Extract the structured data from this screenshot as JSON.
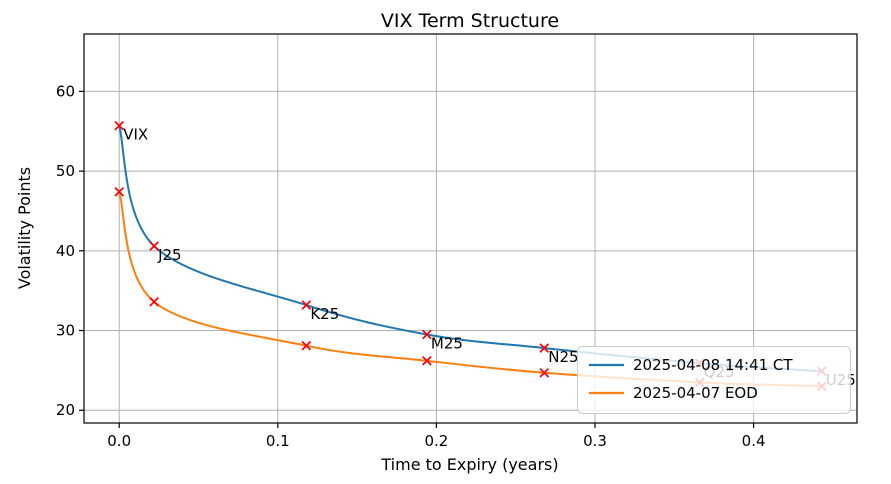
{
  "chart_data": {
    "type": "line",
    "title": "VIX Term Structure",
    "xlabel": "Time to Expiry (years)",
    "ylabel": "Volatility Points",
    "x": [
      0.0,
      0.022,
      0.118,
      0.194,
      0.268,
      0.366,
      0.443
    ],
    "point_labels": [
      "VIX",
      "J25",
      "K25",
      "M25",
      "N25",
      "Q25",
      "U25"
    ],
    "series": [
      {
        "name": "2025-04-08 14:41 CT",
        "color": "#1f77b4",
        "values": [
          55.7,
          40.6,
          33.2,
          29.5,
          27.8,
          25.9,
          24.9
        ]
      },
      {
        "name": "2025-04-07 EOD",
        "color": "#ff7f0e",
        "values": [
          47.4,
          33.6,
          28.1,
          26.2,
          24.7,
          23.5,
          23.0
        ]
      }
    ],
    "marker": {
      "shape": "x",
      "color": "#ff0000"
    },
    "xticks": {
      "values": [
        0.0,
        0.1,
        0.2,
        0.3,
        0.4
      ],
      "labels": [
        "0.0",
        "0.1",
        "0.2",
        "0.3",
        "0.4"
      ]
    },
    "yticks": {
      "values": [
        20,
        30,
        40,
        50,
        60
      ],
      "labels": [
        "20",
        "30",
        "40",
        "50",
        "60"
      ]
    },
    "xlim": [
      -0.0222,
      0.4652
    ],
    "ylim": [
      18.4,
      67.2
    ],
    "grid": true,
    "grid_color": "#b0b0b0",
    "axis_color": "#000000",
    "legend": {
      "position": "lower right",
      "bg": "rgba(255,255,255,0.8)",
      "border": "#cccccc"
    }
  }
}
